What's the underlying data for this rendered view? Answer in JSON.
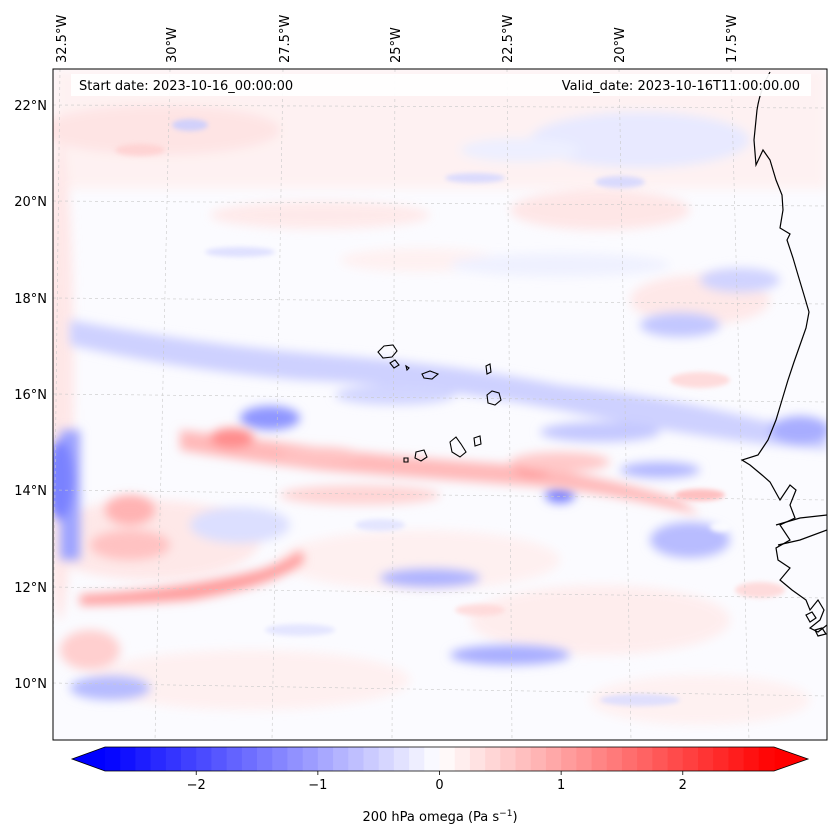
{
  "map": {
    "start_date": "Start date: 2023-10-16_00:00:00",
    "valid_date": "Valid_date: 2023-10-16T11:00:00.00",
    "lon_labels": [
      "32.5°W",
      "30°W",
      "27.5°W",
      "25°W",
      "22.5°W",
      "20°W",
      "17.5°W"
    ],
    "lat_labels": [
      "22°N",
      "20°N",
      "18°N",
      "16°N",
      "14°N",
      "12°N",
      "10°N"
    ],
    "field": "200 hPa omega",
    "region": "Cabo Verde / West Africa coast"
  },
  "colorbar": {
    "label_prefix": "200 hPa omega (Pa s",
    "label_exp": "−1",
    "label_suffix": ")",
    "ticks": [
      "−2",
      "−1",
      "0",
      "1",
      "2"
    ],
    "tick_values": [
      -2,
      -1,
      0,
      1,
      2
    ],
    "vmin": -2.75,
    "vmax": 2.75,
    "cmap": "bwr",
    "low_color": "#0000ff",
    "high_color": "#ff0000",
    "mid_color": "#ffffff"
  }
}
